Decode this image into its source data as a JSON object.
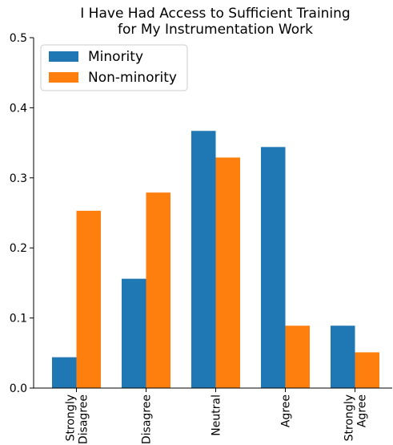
{
  "chart_data": {
    "type": "bar",
    "title": "I Have Had Access to Sufficient Training\nfor My Instrumentation Work",
    "xlabel": "",
    "ylabel": "",
    "categories": [
      "Strongly\nDisagree",
      "Disagree",
      "Neutral",
      "Agree",
      "Strongly\nAgree"
    ],
    "series": [
      {
        "name": "Minority",
        "color": "#1f77b4",
        "values": [
          0.044,
          0.156,
          0.367,
          0.344,
          0.089
        ]
      },
      {
        "name": "Non-minority",
        "color": "#ff7f0e",
        "values": [
          0.253,
          0.279,
          0.329,
          0.089,
          0.051
        ]
      }
    ],
    "ylim": [
      0,
      0.5
    ],
    "yticks": [
      "0.0",
      "0.1",
      "0.2",
      "0.3",
      "0.4",
      "0.5"
    ],
    "grid": false,
    "legend_position": "top-left"
  }
}
